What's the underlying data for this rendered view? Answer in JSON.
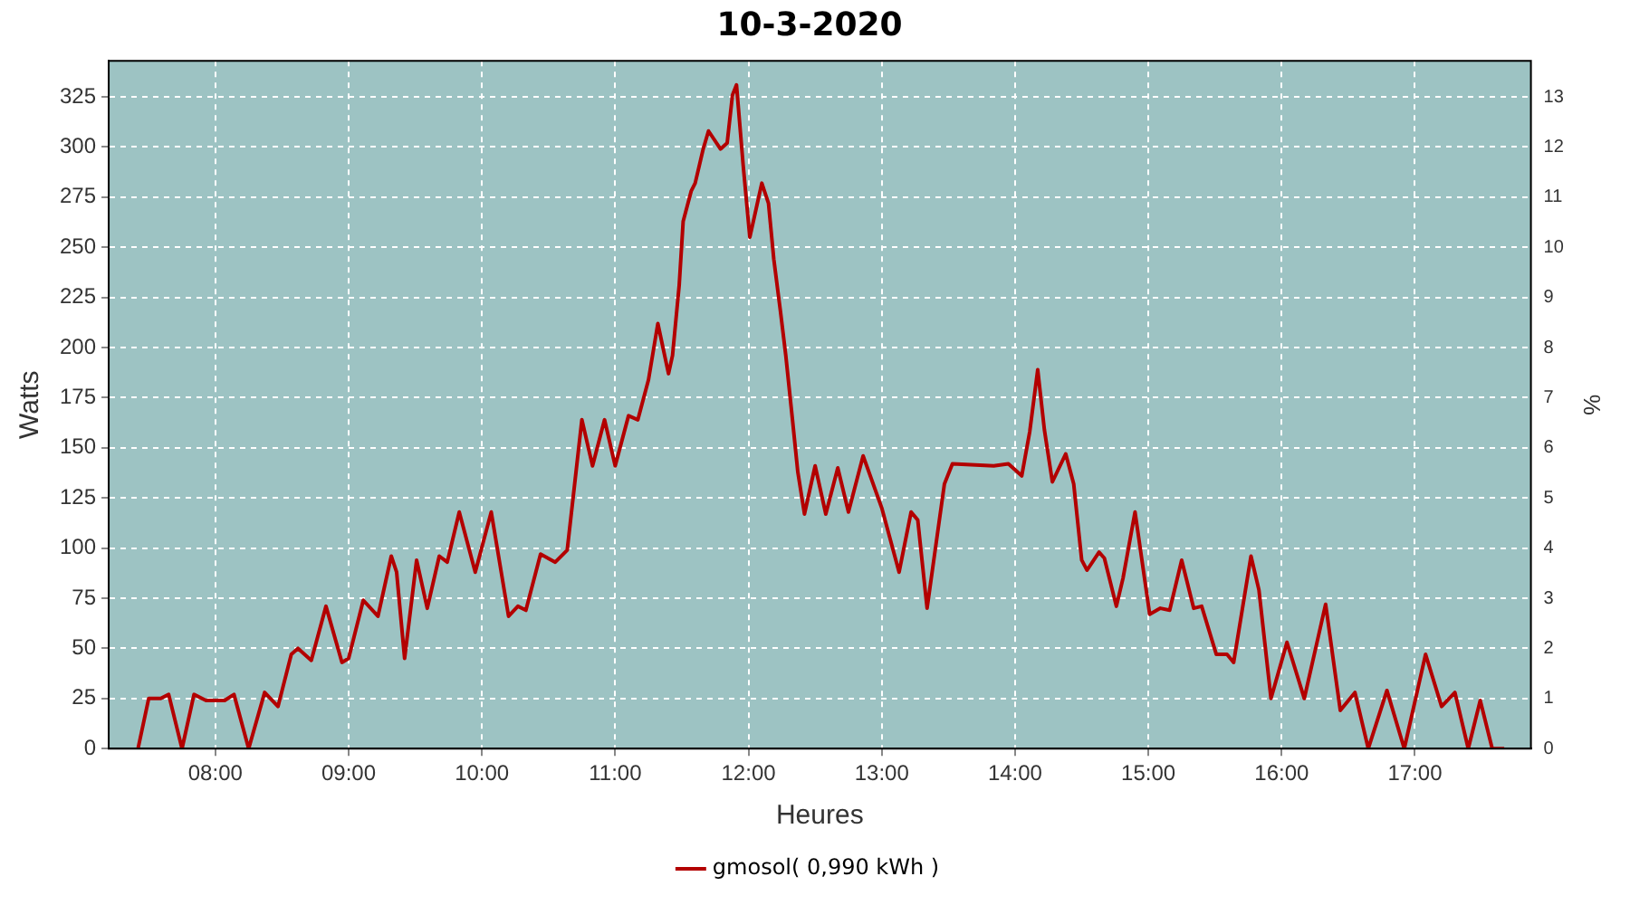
{
  "chart_data": {
    "type": "line",
    "title": "10-3-2020",
    "xlabel": "Heures",
    "ylabel": "Watts",
    "y2label": "%",
    "xlim": [
      7.2,
      17.87
    ],
    "xticks": [
      {
        "value": 8,
        "label": "08:00"
      },
      {
        "value": 9,
        "label": "09:00"
      },
      {
        "value": 10,
        "label": "10:00"
      },
      {
        "value": 11,
        "label": "11:00"
      },
      {
        "value": 12,
        "label": "12:00"
      },
      {
        "value": 13,
        "label": "13:00"
      },
      {
        "value": 14,
        "label": "14:00"
      },
      {
        "value": 15,
        "label": "15:00"
      },
      {
        "value": 16,
        "label": "16:00"
      },
      {
        "value": 17,
        "label": "17:00"
      }
    ],
    "ylim": [
      0,
      343
    ],
    "yticks": [
      0,
      25,
      50,
      75,
      100,
      125,
      150,
      175,
      200,
      225,
      250,
      275,
      300,
      325
    ],
    "y2lim": [
      0,
      13.72
    ],
    "y2ticks": [
      0,
      1,
      2,
      3,
      4,
      5,
      6,
      7,
      8,
      9,
      10,
      11,
      12,
      13
    ],
    "grid": true,
    "legend": "bottom",
    "marker": "none",
    "line_style": "solid",
    "series": [
      {
        "name": "gmosol( 0,990 kWh )",
        "color": "#b30000",
        "x": [
          7.42,
          7.5,
          7.59,
          7.65,
          7.75,
          7.84,
          7.93,
          8.07,
          8.14,
          8.25,
          8.37,
          8.47,
          8.57,
          8.62,
          8.72,
          8.83,
          8.95,
          9.0,
          9.11,
          9.22,
          9.32,
          9.36,
          9.42,
          9.51,
          9.59,
          9.68,
          9.74,
          9.83,
          9.95,
          10.07,
          10.2,
          10.27,
          10.33,
          10.44,
          10.55,
          10.64,
          10.75,
          10.83,
          10.92,
          11.0,
          11.1,
          11.17,
          11.25,
          11.32,
          11.4,
          11.43,
          11.48,
          11.51,
          11.57,
          11.6,
          11.66,
          11.7,
          11.79,
          11.84,
          11.88,
          11.91,
          11.96,
          12.01,
          12.06,
          12.1,
          12.15,
          12.19,
          12.24,
          12.28,
          12.33,
          12.37,
          12.42,
          12.5,
          12.58,
          12.67,
          12.75,
          12.86,
          13.0,
          13.13,
          13.22,
          13.27,
          13.34,
          13.43,
          13.47,
          13.53,
          13.84,
          13.95,
          14.05,
          14.11,
          14.17,
          14.22,
          14.28,
          14.38,
          14.44,
          14.5,
          14.54,
          14.63,
          14.67,
          14.76,
          14.81,
          14.9,
          15.01,
          15.09,
          15.16,
          15.25,
          15.34,
          15.4,
          15.51,
          15.59,
          15.64,
          15.77,
          15.83,
          15.92,
          16.04,
          16.17,
          16.33,
          16.44,
          16.55,
          16.65,
          16.79,
          16.92,
          17.08,
          17.2,
          17.3,
          17.4,
          17.49,
          17.58,
          17.67
        ],
        "values": [
          0,
          25,
          25,
          27,
          0,
          27,
          24,
          24,
          27,
          0,
          28,
          21,
          47,
          50,
          44,
          71,
          43,
          45,
          74,
          66,
          96,
          88,
          45,
          94,
          70,
          96,
          93,
          118,
          88,
          118,
          66,
          71,
          69,
          97,
          93,
          99,
          164,
          141,
          164,
          141,
          166,
          164,
          184,
          212,
          187,
          196,
          231,
          263,
          278,
          282,
          299,
          308,
          299,
          302,
          326,
          331,
          291,
          255,
          270,
          282,
          272,
          244,
          218,
          196,
          164,
          138,
          117,
          141,
          117,
          140,
          118,
          146,
          120,
          88,
          118,
          114,
          70,
          113,
          132,
          142,
          141,
          142,
          136,
          158,
          189,
          159,
          133,
          147,
          132,
          94,
          89,
          98,
          95,
          71,
          85,
          118,
          67,
          70,
          69,
          94,
          70,
          71,
          47,
          47,
          43,
          96,
          79,
          25,
          53,
          25,
          72,
          19,
          28,
          0,
          29,
          0,
          47,
          21,
          28,
          0,
          24,
          0,
          0
        ]
      }
    ]
  }
}
